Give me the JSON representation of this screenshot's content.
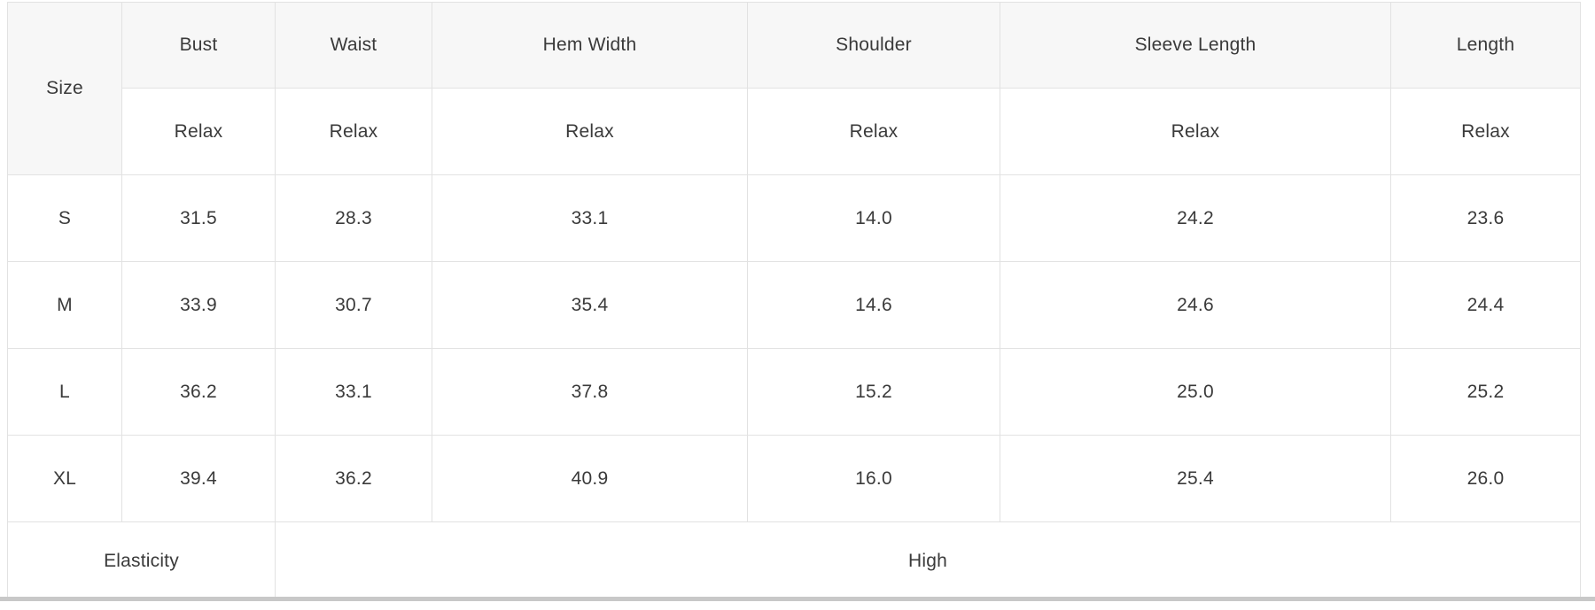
{
  "size_chart": {
    "corner_header": "Size",
    "columns": [
      "Bust",
      "Waist",
      "Hem Width",
      "Shoulder",
      "Sleeve Length",
      "Length"
    ],
    "fit_labels": [
      "Relax",
      "Relax",
      "Relax",
      "Relax",
      "Relax",
      "Relax"
    ],
    "rows": [
      {
        "size": "S",
        "values": [
          "31.5",
          "28.3",
          "33.1",
          "14.0",
          "24.2",
          "23.6"
        ]
      },
      {
        "size": "M",
        "values": [
          "33.9",
          "30.7",
          "35.4",
          "14.6",
          "24.6",
          "24.4"
        ]
      },
      {
        "size": "L",
        "values": [
          "36.2",
          "33.1",
          "37.8",
          "15.2",
          "25.0",
          "25.2"
        ]
      },
      {
        "size": "XL",
        "values": [
          "39.4",
          "36.2",
          "40.9",
          "16.0",
          "25.4",
          "26.0"
        ]
      }
    ],
    "footer": {
      "label": "Elasticity",
      "value": "High"
    }
  },
  "colors": {
    "header_bg": "#f7f7f7",
    "border": "#e2e2e2",
    "text": "#3a3a3a",
    "scrollbar_thumb": "#c8c8c8",
    "background": "#ffffff"
  }
}
